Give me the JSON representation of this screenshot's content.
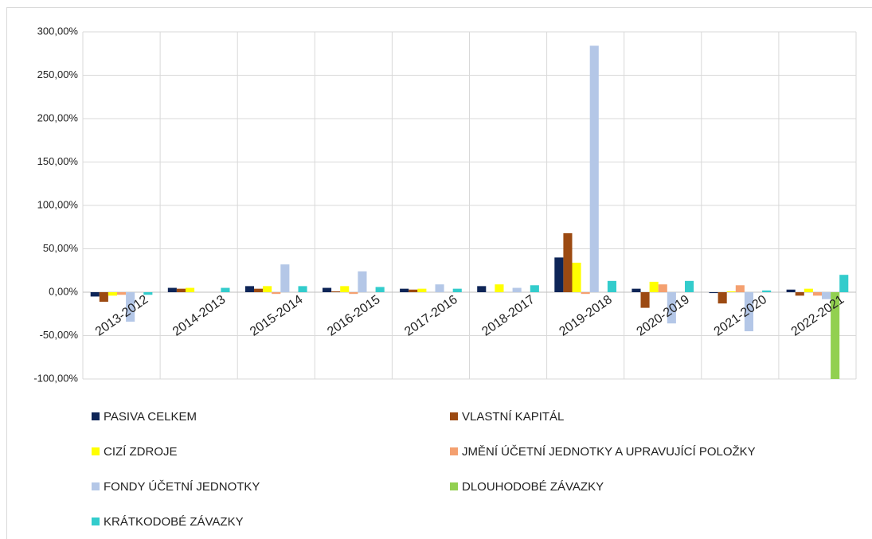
{
  "chart_data": {
    "type": "bar",
    "categories": [
      "2013-2012",
      "2014-2013",
      "2015-2014",
      "2016-2015",
      "2017-2016",
      "2018-2017",
      "2019-2018",
      "2020-2019",
      "2021-2020",
      "2022-2021"
    ],
    "series": [
      {
        "name": "PASIVA CELKEM",
        "color": "#0e2557",
        "values": [
          -5,
          5,
          7,
          5,
          4,
          7,
          40,
          4,
          -1,
          3
        ]
      },
      {
        "name": "VLASTNÍ KAPITÁL",
        "color": "#9c4a12",
        "values": [
          -11,
          4,
          4,
          1,
          3,
          0,
          68,
          -18,
          -13,
          -4
        ]
      },
      {
        "name": "CIZÍ ZDROJE",
        "color": "#ffff00",
        "values": [
          -4,
          5,
          7,
          7,
          4,
          9,
          34,
          12,
          1,
          4
        ]
      },
      {
        "name": "JMĚNÍ ÚČETNÍ JEDNOTKY A UPRAVUJÍCÍ POLOŽKY",
        "color": "#f4a070",
        "values": [
          -3,
          0,
          -2,
          -2,
          0,
          0,
          -2,
          9,
          8,
          -4
        ]
      },
      {
        "name": "FONDY ÚČETNÍ JEDNOTKY",
        "color": "#b4c7e7",
        "values": [
          -34,
          0,
          32,
          24,
          9,
          5,
          284,
          -36,
          -45,
          -8
        ]
      },
      {
        "name": "DLOUHODOBÉ ZÁVAZKY",
        "color": "#92d050",
        "values": [
          0,
          0,
          0,
          0,
          0,
          0,
          0,
          0,
          0,
          -100
        ]
      },
      {
        "name": "KRÁTKODOBÉ ZÁVAZKY",
        "color": "#33cccc",
        "values": [
          -3,
          5,
          7,
          6,
          4,
          8,
          13,
          13,
          2,
          20
        ]
      }
    ],
    "ylim": [
      -100,
      300
    ],
    "yticks": [
      {
        "value": -100,
        "label": "-100,00%"
      },
      {
        "value": -50,
        "label": "-50,00%"
      },
      {
        "value": 0,
        "label": "0,00%"
      },
      {
        "value": 50,
        "label": "50,00%"
      },
      {
        "value": 100,
        "label": "100,00%"
      },
      {
        "value": 150,
        "label": "150,00%"
      },
      {
        "value": 200,
        "label": "200,00%"
      },
      {
        "value": 250,
        "label": "250,00%"
      },
      {
        "value": 300,
        "label": "300,00%"
      }
    ],
    "grid": true
  }
}
